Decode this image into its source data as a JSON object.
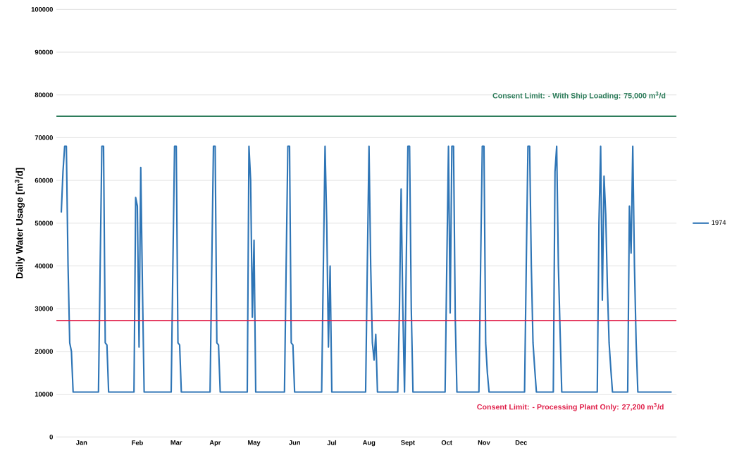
{
  "chart_data": {
    "type": "line",
    "ylabel": "Daily Water Usage  [m$^{3}$/d]",
    "categories": [
      null,
      null,
      null,
      null,
      null,
      null,
      null,
      null,
      null,
      null,
      null,
      null,
      "Jan",
      null,
      null,
      null,
      null,
      null,
      null,
      null,
      null,
      null,
      null,
      null,
      null,
      null,
      null,
      null,
      null,
      null,
      null,
      null,
      null,
      null,
      null,
      null,
      null,
      null,
      null,
      null,
      null,
      null,
      null,
      null,
      null,
      "Feb",
      null,
      null,
      null,
      null,
      null,
      null,
      null,
      null,
      null,
      null,
      null,
      null,
      null,
      null,
      null,
      null,
      null,
      null,
      null,
      null,
      null,
      null,
      "Mar",
      null,
      null,
      null,
      null,
      null,
      null,
      null,
      null,
      null,
      null,
      null,
      null,
      null,
      null,
      null,
      null,
      null,
      null,
      null,
      null,
      null,
      null,
      "Apr",
      null,
      null,
      null,
      null,
      null,
      null,
      null,
      null,
      null,
      null,
      null,
      null,
      null,
      null,
      null,
      null,
      null,
      null,
      null,
      null,
      null,
      null,
      "May",
      null,
      null,
      null,
      null,
      null,
      null,
      null,
      null,
      null,
      null,
      null,
      null,
      null,
      null,
      null,
      null,
      null,
      null,
      null,
      null,
      null,
      null,
      null,
      "Jun",
      null,
      null,
      null,
      null,
      null,
      null,
      null,
      null,
      null,
      null,
      null,
      null,
      null,
      null,
      null,
      null,
      null,
      null,
      null,
      null,
      null,
      "Jul",
      null,
      null,
      null,
      null,
      null,
      null,
      null,
      null,
      null,
      null,
      null,
      null,
      null,
      null,
      null,
      null,
      null,
      null,
      null,
      null,
      null,
      "Aug",
      null,
      null,
      null,
      null,
      null,
      null,
      null,
      null,
      null,
      null,
      null,
      null,
      null,
      null,
      null,
      null,
      null,
      null,
      null,
      null,
      null,
      null,
      "Sept",
      null,
      null,
      null,
      null,
      null,
      null,
      null,
      null,
      null,
      null,
      null,
      null,
      null,
      null,
      null,
      null,
      null,
      null,
      null,
      null,
      null,
      null,
      "Oct",
      null,
      null,
      null,
      null,
      null,
      null,
      null,
      null,
      null,
      null,
      null,
      null,
      null,
      null,
      null,
      null,
      null,
      null,
      null,
      null,
      null,
      "Nov",
      null,
      null,
      null,
      null,
      null,
      null,
      null,
      null,
      null,
      null,
      null,
      null,
      null,
      null,
      null,
      null,
      null,
      null,
      null,
      null,
      null,
      "Dec",
      null,
      null,
      null,
      null,
      null,
      null,
      null,
      null,
      null,
      null,
      null,
      null,
      null,
      null,
      null,
      null,
      null,
      null,
      null,
      null,
      null,
      null,
      null,
      null,
      null,
      null,
      null,
      null,
      null,
      null,
      null,
      null,
      null,
      null,
      null,
      null,
      null,
      null,
      null,
      null,
      null,
      null,
      null,
      null,
      null,
      null,
      null,
      null,
      null,
      null,
      null,
      null,
      null,
      null,
      null,
      null,
      null,
      null,
      null,
      null,
      null,
      null,
      null,
      null,
      null,
      null,
      null,
      null,
      null,
      null,
      null,
      null,
      null,
      null,
      null,
      null,
      null,
      null,
      null,
      null,
      null,
      null,
      null,
      null,
      null,
      null,
      null,
      null,
      null
    ],
    "series": [
      {
        "name": "1974",
        "color": "#2e75b6",
        "values": [
          52500,
          62000,
          68000,
          68000,
          40000,
          22000,
          20000,
          10500,
          10500,
          10500,
          10500,
          10500,
          10500,
          10500,
          10500,
          10500,
          10500,
          10500,
          10500,
          10500,
          10500,
          10500,
          10500,
          40000,
          68000,
          68000,
          22000,
          21500,
          10500,
          10500,
          10500,
          10500,
          10500,
          10500,
          10500,
          10500,
          10500,
          10500,
          10500,
          10500,
          10500,
          10500,
          10500,
          10500,
          56000,
          54000,
          21000,
          63000,
          35000,
          10500,
          10500,
          10500,
          10500,
          10500,
          10500,
          10500,
          10500,
          10500,
          10500,
          10500,
          10500,
          10500,
          10500,
          10500,
          10500,
          10500,
          40000,
          68000,
          68000,
          22000,
          21500,
          10500,
          10500,
          10500,
          10500,
          10500,
          10500,
          10500,
          10500,
          10500,
          10500,
          10500,
          10500,
          10500,
          10500,
          10500,
          10500,
          10500,
          10500,
          40000,
          68000,
          68000,
          22000,
          21500,
          10500,
          10500,
          10500,
          10500,
          10500,
          10500,
          10500,
          10500,
          10500,
          10500,
          10500,
          10500,
          10500,
          10500,
          10500,
          10500,
          10500,
          68000,
          60000,
          28000,
          46000,
          10500,
          10500,
          10500,
          10500,
          10500,
          10500,
          10500,
          10500,
          10500,
          10500,
          10500,
          10500,
          10500,
          10500,
          10500,
          10500,
          10500,
          10500,
          40000,
          68000,
          68000,
          22000,
          21500,
          10500,
          10500,
          10500,
          10500,
          10500,
          10500,
          10500,
          10500,
          10500,
          10500,
          10500,
          10500,
          10500,
          10500,
          10500,
          10500,
          10500,
          40000,
          68000,
          50000,
          21000,
          40000,
          10500,
          10500,
          10500,
          10500,
          10500,
          10500,
          10500,
          10500,
          10500,
          10500,
          10500,
          10500,
          10500,
          10500,
          10500,
          10500,
          10500,
          10500,
          10500,
          10500,
          10500,
          40000,
          68000,
          40000,
          22000,
          18000,
          24000,
          10500,
          10500,
          10500,
          10500,
          10500,
          10500,
          10500,
          10500,
          10500,
          10500,
          10500,
          10500,
          10500,
          30000,
          58000,
          30000,
          10500,
          40000,
          68000,
          68000,
          30000,
          10500,
          10500,
          10500,
          10500,
          10500,
          10500,
          10500,
          10500,
          10500,
          10500,
          10500,
          10500,
          10500,
          10500,
          10500,
          10500,
          10500,
          10500,
          10500,
          10500,
          40000,
          68000,
          29000,
          68000,
          68000,
          28000,
          10500,
          10500,
          10500,
          10500,
          10500,
          10500,
          10500,
          10500,
          10500,
          10500,
          10500,
          10500,
          10500,
          10500,
          40000,
          68000,
          68000,
          22000,
          15000,
          10500,
          10500,
          10500,
          10500,
          10500,
          10500,
          10500,
          10500,
          10500,
          10500,
          10500,
          10500,
          10500,
          10500,
          10500,
          10500,
          10500,
          10500,
          10500,
          10500,
          10500,
          10500,
          40000,
          68000,
          68000,
          40000,
          22000,
          16000,
          10500,
          10500,
          10500,
          10500,
          10500,
          10500,
          10500,
          10500,
          10500,
          10500,
          10500,
          62000,
          68000,
          40000,
          25000,
          10500,
          10500,
          10500,
          10500,
          10500,
          10500,
          10500,
          10500,
          10500,
          10500,
          10500,
          10500,
          10500,
          10500,
          10500,
          10500,
          10500,
          10500,
          10500,
          10500,
          10500,
          10500,
          50000,
          68000,
          32000,
          61000,
          52000,
          35000,
          22000,
          16000,
          10500,
          10500,
          10500,
          10500,
          10500,
          10500,
          10500,
          10500,
          10500,
          10500,
          54000,
          43000,
          68000,
          40000,
          22000,
          10500,
          10500,
          10500,
          10500,
          10500,
          10500,
          10500,
          10500,
          10500,
          10500,
          10500,
          10500,
          10500,
          10500,
          10500,
          10500,
          10500,
          10500,
          10500,
          10500,
          10500
        ]
      }
    ],
    "ylim": [
      0,
      100000
    ],
    "yticks": [
      0,
      10000,
      20000,
      30000,
      40000,
      50000,
      60000,
      70000,
      80000,
      90000,
      100000
    ],
    "ref_lines": [
      {
        "axis": "y",
        "value": 75000,
        "label": "Consent Limit: - With Ship Loading: 75,000 m$^{3}$/d",
        "color": "#2e7d5b"
      },
      {
        "axis": "y",
        "value": 27200,
        "label": "Consent Limit: - Processing Plant Only: 27,200 m$^{3}$/d",
        "color": "#e0204a"
      }
    ],
    "grid": "y",
    "legend": "right",
    "line_style": "solid"
  }
}
